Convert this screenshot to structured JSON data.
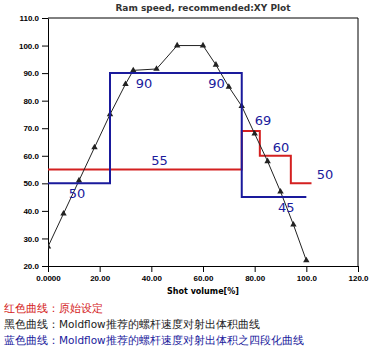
{
  "chart_data": {
    "type": "line",
    "title": "Ram speed, recommended:XY Plot",
    "x_label": "Shot volume[%]",
    "xlim": [
      0,
      120
    ],
    "xticks": [
      {
        "value": 0,
        "label": "0.0000"
      },
      {
        "value": 20,
        "label": "20.00"
      },
      {
        "value": 40,
        "label": "40.00"
      },
      {
        "value": 60,
        "label": "60.00"
      },
      {
        "value": 80,
        "label": "80.00"
      },
      {
        "value": 100,
        "label": "100.0"
      },
      {
        "value": 120,
        "label": "120.0"
      }
    ],
    "ylim": [
      20,
      110
    ],
    "yticks": [
      {
        "value": 20,
        "label": "20.0"
      },
      {
        "value": 30,
        "label": "30.0"
      },
      {
        "value": 40,
        "label": "40.0"
      },
      {
        "value": 50,
        "label": "50.0"
      },
      {
        "value": 60,
        "label": "60.0"
      },
      {
        "value": 70,
        "label": "70.0"
      },
      {
        "value": 80,
        "label": "80.0"
      },
      {
        "value": 90,
        "label": "90.0"
      },
      {
        "value": 100,
        "label": "100.0"
      },
      {
        "value": 110,
        "label": "110.0"
      }
    ],
    "grid": false,
    "legend": "bottom",
    "series": [
      {
        "name": "红色曲线：原始设定",
        "color": "#d42020",
        "line_style": "solid",
        "x": [
          0,
          75,
          75,
          82,
          82,
          94,
          94,
          102
        ],
        "values": [
          55,
          55,
          69,
          69,
          60,
          60,
          50,
          50
        ]
      },
      {
        "name": "黑色曲线：Moldflow推荐的螺杆速度对射出体积曲线",
        "color": "#222222",
        "line_style": "solid",
        "marker": "triangle",
        "x": [
          0,
          6,
          12,
          18,
          24,
          30,
          33,
          42,
          50,
          60,
          65,
          70,
          75,
          80,
          85,
          90,
          95,
          100
        ],
        "values": [
          27,
          39,
          51,
          63,
          75,
          86,
          91,
          91.5,
          100,
          100,
          93,
          85,
          78,
          68,
          58,
          47,
          35,
          22
        ]
      },
      {
        "name": "蓝色曲线：Moldflow推荐的螺杆速度对射出体积之四段化曲线",
        "color": "#1a1a9c",
        "line_style": "solid",
        "x": [
          0,
          24,
          24,
          75,
          75,
          100
        ],
        "values": [
          50,
          50,
          90,
          90,
          45,
          45
        ]
      }
    ],
    "annotations": [
      {
        "text": "55",
        "x": 40,
        "y": 56.5,
        "color": "#1a1a9c"
      },
      {
        "text": "50",
        "x": 8,
        "y": 44.5,
        "color": "#1a1a9c"
      },
      {
        "text": "90",
        "x": 34,
        "y": 84.5,
        "color": "#1a1a9c"
      },
      {
        "text": "90",
        "x": 62,
        "y": 84.5,
        "color": "#1a1a9c"
      },
      {
        "text": "69",
        "x": 80,
        "y": 71,
        "color": "#1a1a9c"
      },
      {
        "text": "60",
        "x": 87,
        "y": 61.5,
        "color": "#1a1a9c"
      },
      {
        "text": "50",
        "x": 104,
        "y": 51.5,
        "color": "#1a1a9c"
      },
      {
        "text": "45",
        "x": 89,
        "y": 39.5,
        "color": "#1a1a9c"
      }
    ]
  }
}
